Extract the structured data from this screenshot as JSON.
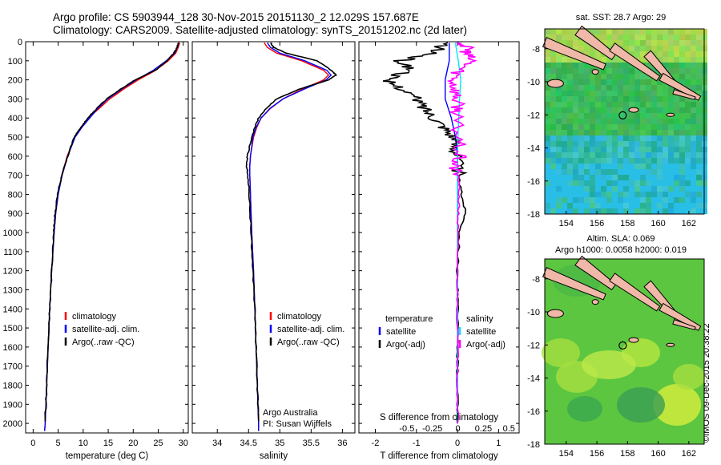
{
  "title_line1": "Argo profile: CS 5903944_128 30-Nov-2015 20151130_2 12.029S 157.687E",
  "title_line2": "Climatology: CARS2009. Satellite-adjusted climatology: synTS_20151202.nc (2d later)",
  "footer_credit": "©IMOS 09-Dec-2015 20:38:22",
  "colors": {
    "climatology": "#ff0000",
    "satellite": "#0000ff",
    "argo": "#000000",
    "sal_satellite": "#00e5ff",
    "sal_argo": "#ff00ff",
    "land": "#f0b8a8"
  },
  "chart_data": [
    {
      "type": "line",
      "id": "temperature",
      "xlabel": "temperature (deg C)",
      "ylabel": "",
      "xlim": [
        -1.5,
        31
      ],
      "ylim": [
        2050,
        0
      ],
      "x_ticks": [
        0,
        5,
        10,
        15,
        20,
        25,
        30
      ],
      "y_ticks": [
        0,
        100,
        200,
        300,
        400,
        500,
        600,
        700,
        800,
        900,
        1000,
        1100,
        1200,
        1300,
        1400,
        1500,
        1600,
        1700,
        1800,
        1900,
        2000
      ],
      "legend": [
        "climatology",
        "satellite-adj. clim.",
        "Argo(..raw -QC)"
      ],
      "legend_position": "bottom-center",
      "series": [
        {
          "name": "climatology",
          "depth": [
            5,
            30,
            60,
            100,
            150,
            200,
            250,
            300,
            350,
            400,
            450,
            500,
            600,
            700,
            800,
            900,
            1000,
            1200,
            1400,
            1600,
            1800,
            2000,
            2040
          ],
          "values": [
            29.3,
            29.0,
            28.5,
            27.0,
            24.5,
            21.0,
            18.0,
            15.3,
            13.2,
            11.0,
            9.5,
            8.3,
            6.8,
            5.7,
            5.0,
            4.5,
            4.2,
            3.7,
            3.3,
            3.0,
            2.7,
            2.4,
            2.3
          ]
        },
        {
          "name": "satellite-adj. clim.",
          "depth": [
            5,
            30,
            60,
            100,
            150,
            200,
            250,
            300,
            350,
            400,
            450,
            500,
            600,
            700,
            800,
            900,
            1000,
            1200,
            1400,
            1600,
            1800,
            2000,
            2040
          ],
          "values": [
            29.1,
            28.8,
            28.3,
            26.6,
            24.0,
            20.6,
            17.6,
            14.9,
            12.9,
            11.3,
            9.7,
            8.4,
            6.9,
            5.8,
            5.0,
            4.5,
            4.2,
            3.7,
            3.3,
            3.0,
            2.7,
            2.4,
            2.3
          ]
        },
        {
          "name": "Argo(..raw -QC)",
          "depth": [
            5,
            30,
            60,
            100,
            150,
            200,
            250,
            300,
            350,
            400,
            450,
            500,
            600,
            700,
            800,
            900,
            1000,
            1200,
            1400,
            1600,
            1800,
            1990
          ],
          "values": [
            29.0,
            28.8,
            28.1,
            26.8,
            24.4,
            20.4,
            17.4,
            14.7,
            12.7,
            10.9,
            9.6,
            8.2,
            6.9,
            5.7,
            4.9,
            4.4,
            4.1,
            3.7,
            3.3,
            3.0,
            2.7,
            2.4
          ]
        }
      ]
    },
    {
      "type": "line",
      "id": "salinity",
      "xlabel": "salinity",
      "ylabel": "",
      "xlim": [
        33.6,
        36.2
      ],
      "ylim": [
        2050,
        0
      ],
      "x_ticks": [
        34,
        34.5,
        35,
        35.5,
        36
      ],
      "legend": [
        "climatology",
        "satellite-adj. clim.",
        "Argo(..raw -QC)"
      ],
      "legend_position": "bottom-right",
      "annotation": [
        "Argo Australia",
        "PI: Susan Wijffels"
      ],
      "series": [
        {
          "name": "climatology",
          "depth": [
            5,
            30,
            60,
            100,
            150,
            175,
            200,
            250,
            300,
            350,
            400,
            450,
            500,
            600,
            650,
            700,
            800,
            1000,
            1200,
            1400,
            1600,
            1800,
            2000,
            2040
          ],
          "values": [
            34.75,
            34.8,
            34.95,
            35.35,
            35.7,
            35.78,
            35.7,
            35.35,
            35.05,
            34.85,
            34.7,
            34.63,
            34.58,
            34.53,
            34.52,
            34.52,
            34.53,
            34.55,
            34.58,
            34.6,
            34.62,
            34.64,
            34.66,
            34.66
          ]
        },
        {
          "name": "satellite-adj. clim.",
          "depth": [
            5,
            30,
            60,
            100,
            150,
            175,
            200,
            250,
            300,
            350,
            400,
            450,
            500,
            600,
            650,
            700,
            800,
            1000,
            1200,
            1400,
            1600,
            1800,
            2000,
            2040
          ],
          "values": [
            34.8,
            34.85,
            35.0,
            35.4,
            35.75,
            35.82,
            35.74,
            35.38,
            35.05,
            34.84,
            34.7,
            34.62,
            34.57,
            34.53,
            34.52,
            34.52,
            34.53,
            34.55,
            34.58,
            34.6,
            34.62,
            34.64,
            34.66,
            34.66
          ]
        },
        {
          "name": "Argo(..raw -QC)",
          "depth": [
            5,
            30,
            60,
            100,
            150,
            175,
            200,
            250,
            300,
            350,
            400,
            450,
            500,
            600,
            650,
            700,
            800,
            1000,
            1200,
            1400,
            1600,
            1800,
            1990
          ],
          "values": [
            34.85,
            34.9,
            35.1,
            35.6,
            35.82,
            35.9,
            35.78,
            35.3,
            34.95,
            34.78,
            34.66,
            34.6,
            34.55,
            34.48,
            34.47,
            34.49,
            34.51,
            34.54,
            34.57,
            34.6,
            34.62,
            34.64,
            34.66
          ]
        }
      ]
    },
    {
      "type": "line",
      "id": "difference",
      "xlabel": "T difference from climatology",
      "xlabel_top": "S difference from climatology",
      "xlim": [
        -2.4,
        1.5
      ],
      "ylim": [
        2050,
        0
      ],
      "x_ticks": [
        -2,
        -1,
        0,
        1
      ],
      "x_ticks_salinity": [
        -0.5,
        -0.25,
        0,
        0.25,
        0.5
      ],
      "x_tick_labels_salinity": [
        "-0.5",
        "-0.25",
        "0",
        "0.25",
        "0.5"
      ],
      "legend_temperature_title": "temperature",
      "legend_salinity_title": "salinity",
      "legend_temperature": [
        "satellite",
        "Argo(-adj)"
      ],
      "legend_salinity": [
        "satellite",
        "Argo(-adj)"
      ],
      "series": [
        {
          "name": "T satellite",
          "depth": [
            5,
            100,
            200,
            300,
            400,
            500,
            600,
            800,
            1000,
            1500,
            2000
          ],
          "values": [
            -0.2,
            -0.2,
            -0.3,
            -0.3,
            -0.15,
            -0.05,
            0,
            0,
            0,
            0,
            0
          ]
        },
        {
          "name": "T Argo(-adj)",
          "depth": [
            5,
            60,
            100,
            150,
            200,
            250,
            300,
            350,
            400,
            450,
            500,
            550,
            600,
            700,
            800,
            900,
            1000,
            1200,
            1400,
            1600,
            1800,
            2000
          ],
          "values": [
            -0.3,
            -0.6,
            -1.4,
            -1.1,
            -1.8,
            -1.3,
            -1.0,
            -0.8,
            -0.55,
            -0.3,
            -0.1,
            -0.05,
            0,
            0.02,
            0.1,
            0.2,
            0.05,
            0,
            0,
            0,
            0,
            0
          ]
        },
        {
          "name": "S satellite",
          "depth": [
            5,
            50,
            100,
            200,
            300,
            400,
            500,
            600,
            800,
            1000,
            1500,
            2000
          ],
          "values": [
            -0.05,
            -0.02,
            0.02,
            0.08,
            0.05,
            0.03,
            0.01,
            0,
            0,
            0,
            0,
            0
          ]
        },
        {
          "name": "S Argo(-adj)",
          "depth": [
            5,
            40,
            60,
            100,
            150,
            200,
            250,
            300,
            350,
            400,
            500,
            600,
            650,
            700,
            800,
            900,
            1000,
            1200,
            1400,
            1600,
            1800,
            2000
          ],
          "values": [
            0.1,
            0.25,
            0.2,
            0.35,
            0.05,
            -0.1,
            -0.05,
            -0.02,
            0.01,
            -0.04,
            0.02,
            0.05,
            -0.1,
            0.02,
            0.04,
            0.02,
            0,
            0,
            0,
            0,
            0,
            0
          ]
        }
      ]
    },
    {
      "type": "heatmap",
      "id": "sst_map",
      "title": "sat. SST: 28.7  Argo: 29",
      "x_ticks": [
        154,
        156,
        158,
        160,
        162
      ],
      "y_ticks": [
        -8,
        -10,
        -12,
        -14,
        -16,
        -18
      ],
      "xlim": [
        152.6,
        163.0
      ],
      "ylim": [
        -18,
        -6.8
      ],
      "marker": {
        "lon": 157.687,
        "lat": -12.029
      }
    },
    {
      "type": "heatmap",
      "id": "sla_map",
      "title_line1": "Altim. SLA: 0.069",
      "title_line2": "Argo h1000: 0.0058 h2000: 0.019",
      "x_ticks": [
        154,
        156,
        158,
        160,
        162
      ],
      "y_ticks": [
        -8,
        -10,
        -12,
        -14,
        -16,
        -18
      ],
      "xlim": [
        152.6,
        163.0
      ],
      "ylim": [
        -18,
        -6.8
      ],
      "marker": {
        "lon": 157.687,
        "lat": -12.029
      }
    }
  ]
}
